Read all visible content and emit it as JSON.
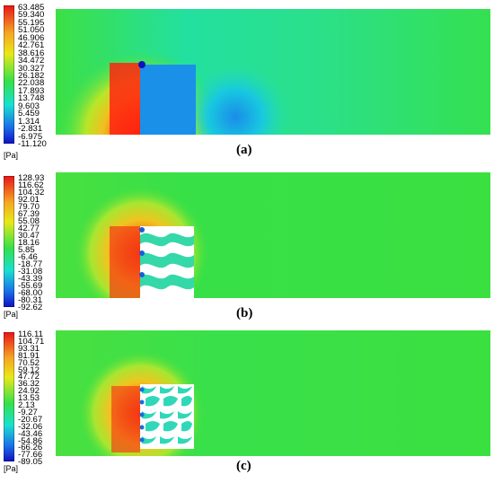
{
  "panels": [
    {
      "caption": "(a)",
      "unit": "[Pa]",
      "ticks": [
        "63.485",
        "59.340",
        "55.195",
        "51.050",
        "46.906",
        "42.761",
        "38.616",
        "34.472",
        "30.327",
        "26.182",
        "22.038",
        "17.893",
        "13.748",
        "9.603",
        "5.459",
        "1.314",
        "-2.831",
        "-6.975",
        "-11.120"
      ]
    },
    {
      "caption": "(b)",
      "unit": "[Pa]",
      "ticks": [
        "128.93",
        "116.62",
        "104.32",
        "92.01",
        "79.70",
        "67.39",
        "55.08",
        "42.77",
        "30.47",
        "18.16",
        "5.85",
        "-6.46",
        "-18.77",
        "-31.08",
        "-43.39",
        "-55.69",
        "-68.00",
        "-80.31",
        "-92.62"
      ]
    },
    {
      "caption": "(c)",
      "unit": "[Pa]",
      "ticks": [
        "116.11",
        "104.71",
        "93.31",
        "81.91",
        "70.52",
        "59.12",
        "47.72",
        "36.32",
        "24.92",
        "13.53",
        "2.13",
        "-9.27",
        "-20.67",
        "-32.06",
        "-43.46",
        "-54.86",
        "-66.26",
        "-77.66",
        "-89.05"
      ]
    }
  ],
  "colors": {
    "background_field": "#35e04a",
    "high_pressure": "#e8201a",
    "low_pressure": "#1a8fe8"
  }
}
